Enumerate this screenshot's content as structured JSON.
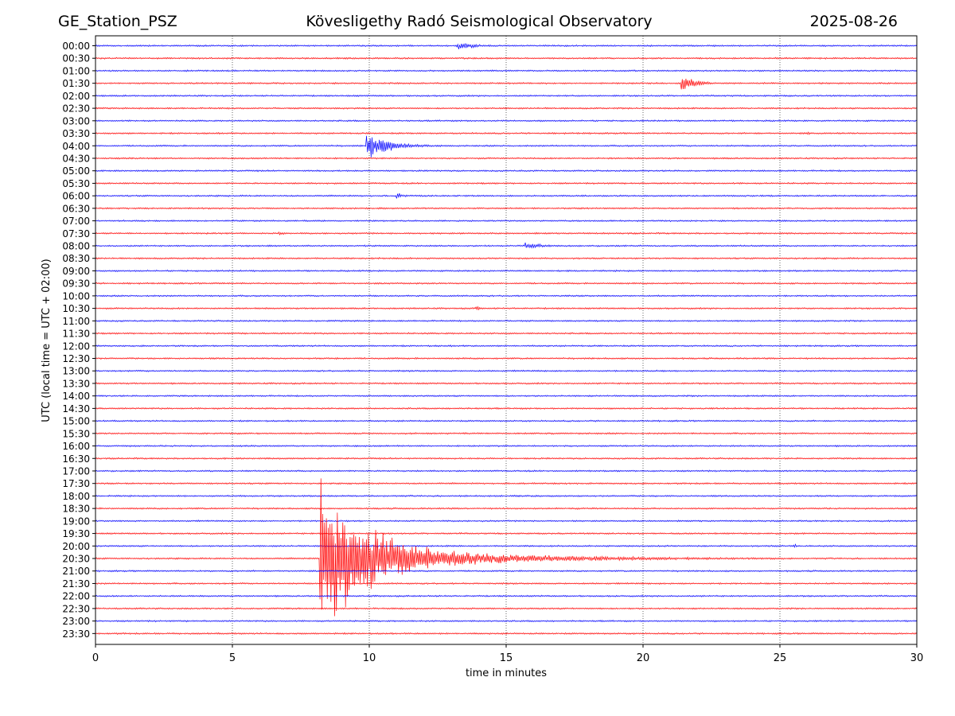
{
  "header": {
    "station": "GE_Station_PSZ",
    "observatory": "Kövesligethy Radó Seismological Observatory",
    "date": "2025-08-26"
  },
  "chart_data": {
    "type": "line",
    "subtype": "helicorder",
    "xlabel": "time in minutes",
    "ylabel": "UTC (local time = UTC + 02:00)",
    "xlim": [
      0,
      30
    ],
    "x_ticks": [
      "0",
      "5",
      "10",
      "15",
      "20",
      "25",
      "30"
    ],
    "x_tick_values": [
      0,
      5,
      10,
      15,
      20,
      25,
      30
    ],
    "vertical_grid": "dotted at 5,10,15,20,25",
    "row_labels": [
      "00:00",
      "00:30",
      "01:00",
      "01:30",
      "02:00",
      "02:30",
      "03:00",
      "03:30",
      "04:00",
      "04:30",
      "05:00",
      "05:30",
      "06:00",
      "06:30",
      "07:00",
      "07:30",
      "08:00",
      "08:30",
      "09:00",
      "09:30",
      "10:00",
      "10:30",
      "11:00",
      "11:30",
      "12:00",
      "12:30",
      "13:00",
      "13:30",
      "14:00",
      "14:30",
      "15:00",
      "15:30",
      "16:00",
      "16:30",
      "17:00",
      "17:30",
      "18:00",
      "18:30",
      "19:00",
      "19:30",
      "20:00",
      "20:30",
      "21:00",
      "21:30",
      "22:00",
      "22:30",
      "23:00",
      "23:30"
    ],
    "row_colors": [
      "#0000ff",
      "#ff0000"
    ],
    "noise_amplitude_rows": 0.07,
    "events": [
      {
        "row": "00:00",
        "start_min": 13.2,
        "duration_min": 3.0,
        "amplitude_rows": 0.35,
        "decay_min": 0.8
      },
      {
        "row": "01:30",
        "start_min": 21.4,
        "duration_min": 4.0,
        "amplitude_rows": 1.0,
        "decay_min": 0.5
      },
      {
        "row": "03:30",
        "start_min": 26.0,
        "duration_min": 0.3,
        "amplitude_rows": 0.15,
        "decay_min": 0.2
      },
      {
        "row": "04:00",
        "start_min": 9.9,
        "duration_min": 3.5,
        "amplitude_rows": 1.2,
        "decay_min": 0.9
      },
      {
        "row": "06:00",
        "start_min": 11.0,
        "duration_min": 0.8,
        "amplitude_rows": 0.35,
        "decay_min": 0.25
      },
      {
        "row": "07:30",
        "start_min": 6.7,
        "duration_min": 0.6,
        "amplitude_rows": 0.2,
        "decay_min": 0.3
      },
      {
        "row": "08:00",
        "start_min": 6.3,
        "duration_min": 0.8,
        "amplitude_rows": 0.15,
        "decay_min": 0.4
      },
      {
        "row": "08:00",
        "start_min": 15.7,
        "duration_min": 1.8,
        "amplitude_rows": 0.3,
        "decay_min": 0.8
      },
      {
        "row": "10:30",
        "start_min": 13.9,
        "duration_min": 0.5,
        "amplitude_rows": 0.25,
        "decay_min": 0.2
      },
      {
        "row": "12:30",
        "start_min": 8.8,
        "duration_min": 0.3,
        "amplitude_rows": 0.15,
        "decay_min": 0.15
      },
      {
        "row": "20:00",
        "start_min": 25.5,
        "duration_min": 0.3,
        "amplitude_rows": 0.25,
        "decay_min": 0.15
      },
      {
        "row": "20:30",
        "start_min": 8.2,
        "duration_min": 17.5,
        "amplitude_rows": 6.5,
        "decay_min": 1.6,
        "tail_amplitude_rows": 0.8,
        "tail_decay_min": 7.0
      }
    ]
  }
}
